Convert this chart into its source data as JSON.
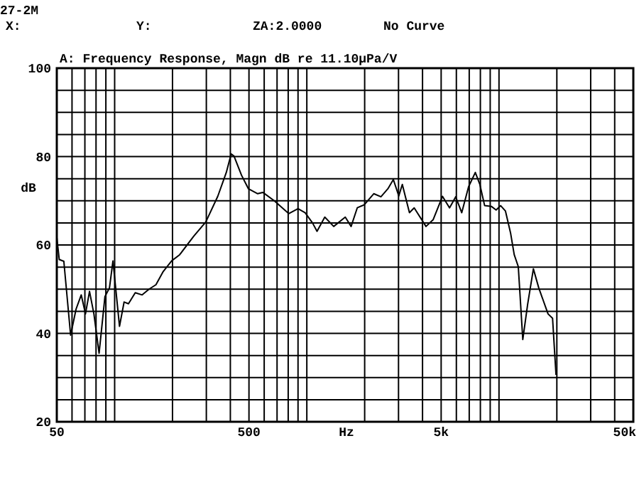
{
  "chart_data": {
    "type": "line",
    "title": "A: Frequency Response, Magn dB re 11.10µPa/V",
    "xlabel": "Hz",
    "ylabel": "dB",
    "annotations": [
      "27-2M",
      "X:",
      "Y:",
      "ZA:2.0000",
      "No Curve"
    ],
    "log": "x",
    "grid": true,
    "marker": "none",
    "line_style": "solid",
    "xlim": [
      50,
      50000
    ],
    "xticks": [
      {
        "value": 50,
        "label": "50"
      },
      {
        "value": 60,
        "label": null
      },
      {
        "value": 70,
        "label": null
      },
      {
        "value": 80,
        "label": null
      },
      {
        "value": 90,
        "label": null
      },
      {
        "value": 100,
        "label": null
      },
      {
        "value": 200,
        "label": null
      },
      {
        "value": 300,
        "label": null
      },
      {
        "value": 400,
        "label": null
      },
      {
        "value": 500,
        "label": "500"
      },
      {
        "value": 600,
        "label": null
      },
      {
        "value": 700,
        "label": null
      },
      {
        "value": 800,
        "label": null
      },
      {
        "value": 900,
        "label": null
      },
      {
        "value": 1000,
        "label": null
      },
      {
        "value": 2000,
        "label": null
      },
      {
        "value": 3000,
        "label": null
      },
      {
        "value": 4000,
        "label": null
      },
      {
        "value": 5000,
        "label": "5k"
      },
      {
        "value": 6000,
        "label": null
      },
      {
        "value": 7000,
        "label": null
      },
      {
        "value": 8000,
        "label": null
      },
      {
        "value": 9000,
        "label": null
      },
      {
        "value": 10000,
        "label": null
      },
      {
        "value": 20000,
        "label": null
      },
      {
        "value": 30000,
        "label": null
      },
      {
        "value": 40000,
        "label": null
      },
      {
        "value": 50000,
        "label": "50k"
      }
    ],
    "ylim": [
      20,
      100
    ],
    "yticks": [
      20,
      {
        "value": 25,
        "label": null
      },
      {
        "value": 30,
        "label": null
      },
      {
        "value": 35,
        "label": null
      },
      40,
      {
        "value": 45,
        "label": null
      },
      {
        "value": 50,
        "label": null
      },
      {
        "value": 55,
        "label": null
      },
      60,
      {
        "value": 65,
        "label": null
      },
      {
        "value": 70,
        "label": null
      },
      {
        "value": 75,
        "label": null
      },
      80,
      {
        "value": 85,
        "label": null
      },
      {
        "value": 90,
        "label": null
      },
      {
        "value": 95,
        "label": null
      },
      100
    ],
    "x": [
      50,
      51.5,
      54.4,
      59,
      63,
      67,
      70.5,
      74,
      78,
      83,
      89,
      94,
      98,
      106,
      112,
      118,
      128,
      139,
      151,
      164,
      179,
      198,
      218,
      258,
      298,
      344,
      381,
      404,
      418,
      457,
      497,
      555,
      590,
      677,
      805,
      900,
      980,
      1070,
      1130,
      1240,
      1380,
      1585,
      1700,
      1830,
      1990,
      2230,
      2430,
      2640,
      2820,
      3010,
      3140,
      3420,
      3620,
      4170,
      4540,
      5080,
      5530,
      5950,
      6400,
      6950,
      7530,
      7950,
      8420,
      9150,
      9660,
      10200,
      10800,
      11500,
      12000,
      12600,
      13300,
      14100,
      15100,
      16100,
      18000,
      19000,
      19800
    ],
    "series": [
      {
        "color": "#000000",
        "values": [
          61.7,
          56.7,
          56.3,
          39.6,
          45.5,
          48.7,
          44.4,
          49.5,
          44.4,
          35.5,
          48.3,
          50.3,
          56.4,
          41.6,
          47.1,
          46.7,
          49.2,
          48.7,
          50,
          51,
          54,
          56.4,
          57.8,
          62,
          65.2,
          71,
          76.4,
          80.6,
          80.1,
          75.8,
          72.7,
          71.6,
          71.9,
          70,
          67.1,
          68.2,
          67.3,
          65,
          63.1,
          66.3,
          64.2,
          66.3,
          64.2,
          68.4,
          69.1,
          71.6,
          70.9,
          72.7,
          74.8,
          71.1,
          73.7,
          67.3,
          68.4,
          64.2,
          65.7,
          71,
          68.4,
          70.9,
          67.3,
          73.2,
          76.4,
          73.7,
          68.9,
          68.7,
          67.9,
          68.9,
          67.7,
          62.6,
          57.8,
          55.1,
          38.6,
          46.6,
          54.6,
          50.3,
          44.4,
          43.4,
          30.6
        ]
      }
    ]
  }
}
